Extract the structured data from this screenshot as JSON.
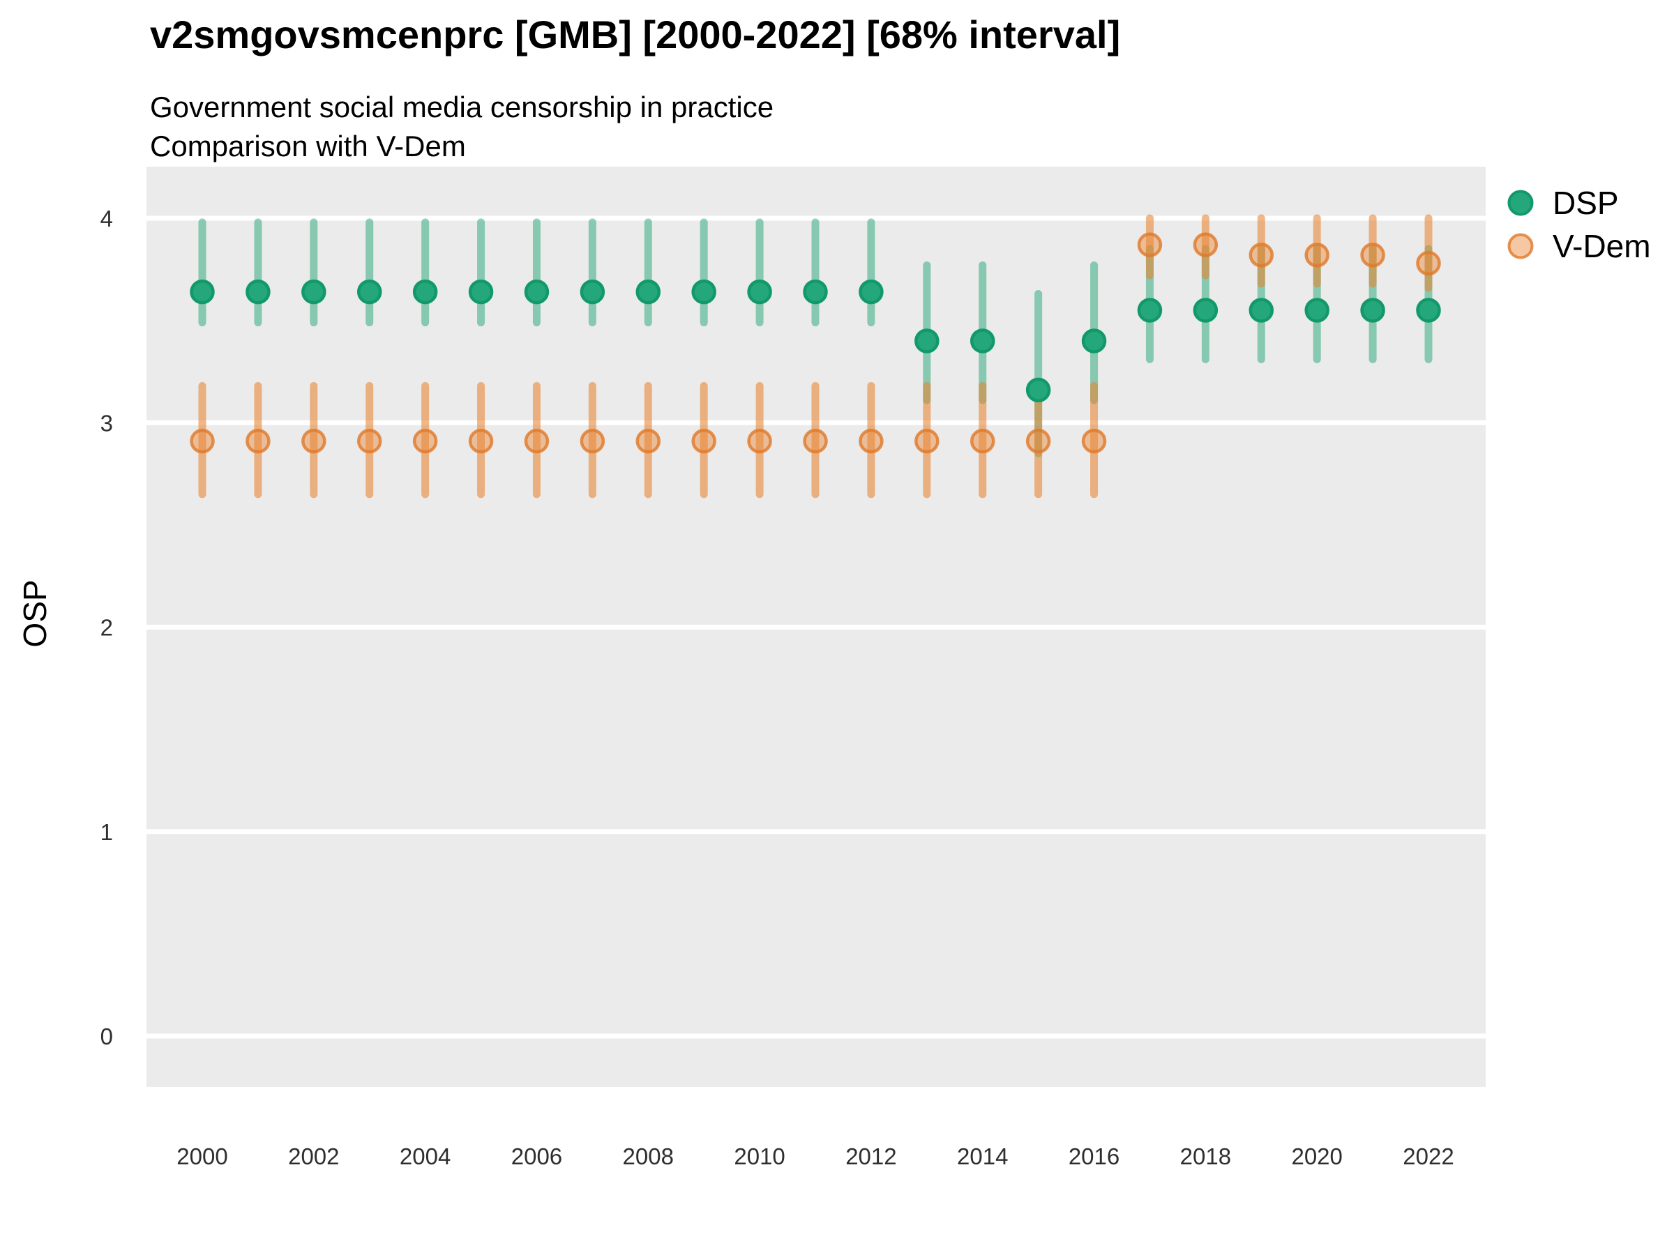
{
  "header": {
    "title": "v2smgovsmcenprc [GMB] [2000-2022] [68% interval]",
    "subtitle1": "Government social media censorship in practice",
    "subtitle2": "Comparison with V-Dem"
  },
  "legend": {
    "position": "right",
    "items": [
      {
        "label": "DSP",
        "marker": "filled-circle"
      },
      {
        "label": "V-Dem",
        "marker": "filled-circle"
      }
    ]
  },
  "axes": {
    "y_title": "OSP",
    "x_title": "",
    "y_tick_labels": [
      "4",
      "3",
      "2",
      "1",
      "0"
    ],
    "x_tick_labels": [
      "2000",
      "2002",
      "2004",
      "2006",
      "2008",
      "2010",
      "2012",
      "2014",
      "2016",
      "2018",
      "2020",
      "2022"
    ]
  },
  "colors": {
    "panel_background": "#ebebeb",
    "gridline": "#ffffff",
    "dsp_dot_fill": "#25a77c",
    "dsp_dot_stroke": "#12996a",
    "dsp_line": "rgba(35,166,120,0.5)",
    "vdem_dot_fill": "rgba(233,133,50,0.45)",
    "vdem_dot_stroke": "rgba(224,120,40,0.8)",
    "vdem_line": "rgba(232,131,47,0.58)",
    "tick_text": "#2e2e2e"
  },
  "chart_data": {
    "type": "pointrange",
    "title": "v2smgovsmcenprc [GMB] [2000-2022] [68% interval]",
    "subtitle": [
      "Government social media censorship in practice",
      "Comparison with V-Dem"
    ],
    "interval": "68%",
    "xlabel": "",
    "ylabel": "OSP",
    "grid": "white major gridlines on gray panel, no minor gridlines",
    "legend_position": "right",
    "x": [
      2000,
      2001,
      2002,
      2003,
      2004,
      2005,
      2006,
      2007,
      2008,
      2009,
      2010,
      2011,
      2012,
      2013,
      2014,
      2015,
      2016,
      2017,
      2018,
      2019,
      2020,
      2021,
      2022
    ],
    "x_ticks": [
      2000,
      2002,
      2004,
      2006,
      2008,
      2010,
      2012,
      2014,
      2016,
      2018,
      2020,
      2022
    ],
    "y_ticks": [
      0,
      1,
      2,
      3,
      4
    ],
    "xlim": [
      1999,
      2023.05
    ],
    "ylim": [
      -0.25,
      4.25
    ],
    "series": [
      {
        "name": "DSP",
        "est": [
          3.64,
          3.64,
          3.64,
          3.64,
          3.64,
          3.64,
          3.64,
          3.64,
          3.64,
          3.64,
          3.64,
          3.64,
          3.64,
          3.4,
          3.4,
          3.16,
          3.4,
          3.55,
          3.55,
          3.55,
          3.55,
          3.55,
          3.55
        ],
        "lo": [
          3.49,
          3.49,
          3.49,
          3.49,
          3.49,
          3.49,
          3.49,
          3.49,
          3.49,
          3.49,
          3.49,
          3.49,
          3.49,
          3.11,
          3.11,
          2.85,
          3.11,
          3.31,
          3.31,
          3.31,
          3.31,
          3.31,
          3.31
        ],
        "hi": [
          3.98,
          3.98,
          3.98,
          3.98,
          3.98,
          3.98,
          3.98,
          3.98,
          3.98,
          3.98,
          3.98,
          3.98,
          3.98,
          3.77,
          3.77,
          3.63,
          3.77,
          3.85,
          3.85,
          3.85,
          3.85,
          3.85,
          3.85
        ],
        "dot_fill": "#25a77c",
        "dot_stroke": "#12996a",
        "line_color": "rgba(35,166,120,0.5)"
      },
      {
        "name": "V-Dem",
        "est": [
          2.91,
          2.91,
          2.91,
          2.91,
          2.91,
          2.91,
          2.91,
          2.91,
          2.91,
          2.91,
          2.91,
          2.91,
          2.91,
          2.91,
          2.91,
          2.91,
          2.91,
          3.87,
          3.87,
          3.82,
          3.82,
          3.82,
          3.78
        ],
        "lo": [
          2.65,
          2.65,
          2.65,
          2.65,
          2.65,
          2.65,
          2.65,
          2.65,
          2.65,
          2.65,
          2.65,
          2.65,
          2.65,
          2.65,
          2.65,
          2.65,
          2.65,
          3.72,
          3.72,
          3.68,
          3.68,
          3.68,
          3.66
        ],
        "hi": [
          3.18,
          3.18,
          3.18,
          3.18,
          3.18,
          3.18,
          3.18,
          3.18,
          3.18,
          3.18,
          3.18,
          3.18,
          3.18,
          3.18,
          3.18,
          3.18,
          3.18,
          4.0,
          4.0,
          4.0,
          4.0,
          4.0,
          4.0
        ],
        "dot_fill": "rgba(233,133,50,0.45)",
        "dot_stroke": "rgba(224,120,40,0.8)",
        "line_color": "rgba(232,131,47,0.58)"
      }
    ]
  }
}
